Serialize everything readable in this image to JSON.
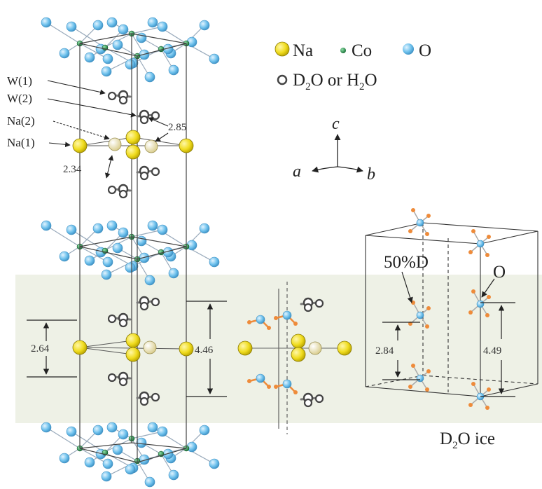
{
  "legend": {
    "na": "Na",
    "co": "Co",
    "o": "O",
    "water_prefix": "D",
    "water_sub": "2",
    "water_mid": "O or H",
    "water_sub2": "2",
    "water_suffix": "O"
  },
  "site_labels": {
    "w1": "W(1)",
    "w2": "W(2)",
    "na2": "Na(2)",
    "na1": "Na(1)"
  },
  "distances": {
    "d285": "2.85",
    "d234": "2.34",
    "d264": "2.64",
    "d446": "4.46",
    "d284": "2.84",
    "d449": "4.49"
  },
  "axes": {
    "c": "c",
    "a": "a",
    "b": "b"
  },
  "ice": {
    "deuteration": "50%D",
    "oxygen": "O",
    "title_prefix": "D",
    "title_sub": "2",
    "title_suffix": "O ice"
  },
  "colors": {
    "na": "#f0dc1e",
    "na_partial": "#ece2a6",
    "co": "#1e9a4a",
    "o": "#6cc0ec",
    "water": "#4a4a4a",
    "deuterium": "#ee8b3a",
    "band": "#eef1e6"
  }
}
